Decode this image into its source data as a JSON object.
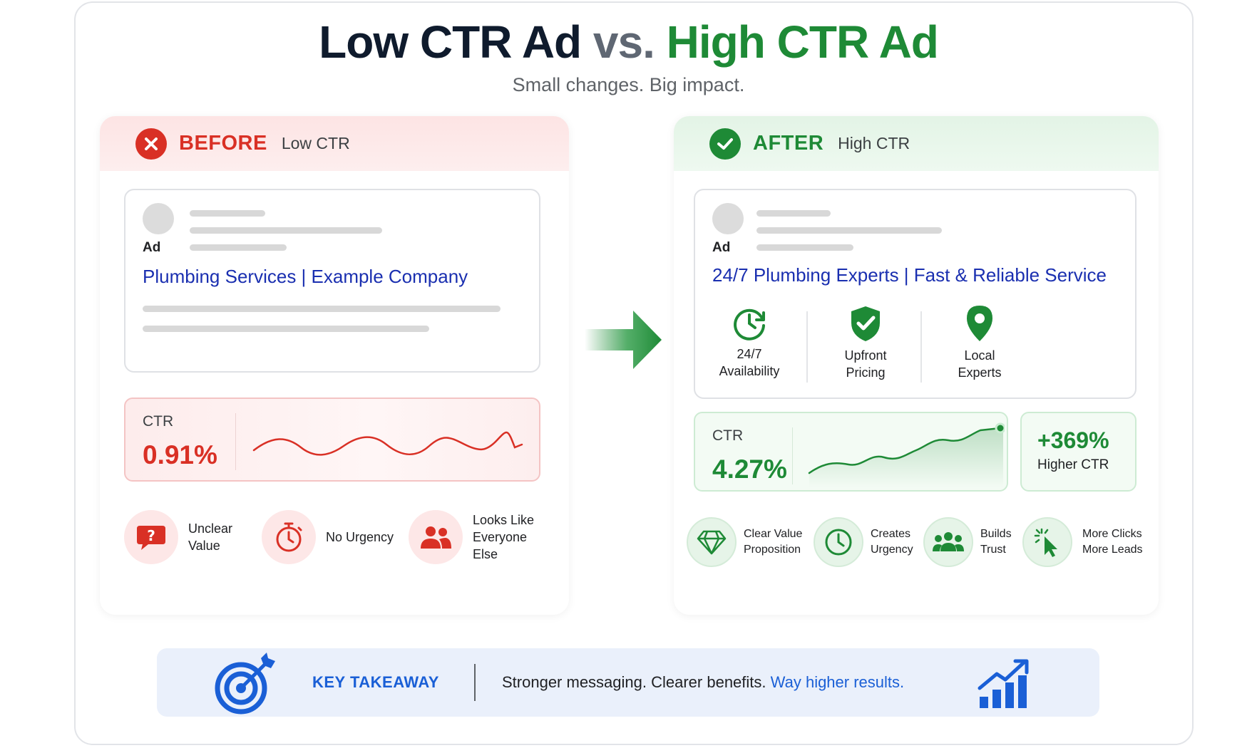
{
  "header": {
    "title_low": "Low CTR Ad",
    "title_vs": "vs.",
    "title_high": "High CTR Ad",
    "subtitle": "Small changes. Big impact."
  },
  "before": {
    "label": "BEFORE",
    "sublabel": "Low CTR",
    "ad_tag": "Ad",
    "headline": "Plumbing Services | Example Company",
    "ctr_label": "CTR",
    "ctr_value": "0.91%",
    "issues": [
      {
        "icon": "question-bubble-icon",
        "text_lines": [
          "Unclear",
          "Value"
        ]
      },
      {
        "icon": "stopwatch-icon",
        "text_lines": [
          "No Urgency"
        ]
      },
      {
        "icon": "people-icon",
        "text_lines": [
          "Looks Like",
          "Everyone",
          "Else"
        ]
      }
    ]
  },
  "after": {
    "label": "AFTER",
    "sublabel": "High CTR",
    "ad_tag": "Ad",
    "headline": "24/7 Plumbing Experts | Fast & Reliable Service",
    "features": [
      {
        "icon": "clock-icon",
        "text_lines": [
          "24/7",
          "Availability"
        ]
      },
      {
        "icon": "shield-check-icon",
        "text_lines": [
          "Upfront",
          "Pricing"
        ]
      },
      {
        "icon": "map-pin-icon",
        "text_lines": [
          "Local",
          "Experts"
        ]
      }
    ],
    "ctr_label": "CTR",
    "ctr_value": "4.27%",
    "uplift_value": "+369%",
    "uplift_label": "Higher CTR",
    "benefits": [
      {
        "icon": "diamond-icon",
        "text_lines": [
          "Clear Value",
          "Proposition"
        ]
      },
      {
        "icon": "clock-icon",
        "text_lines": [
          "Creates",
          "Urgency"
        ]
      },
      {
        "icon": "group-icon",
        "text_lines": [
          "Builds",
          "Trust"
        ]
      },
      {
        "icon": "cursor-click-icon",
        "text_lines": [
          "More Clicks",
          "More Leads"
        ]
      }
    ]
  },
  "takeaway": {
    "title": "KEY TAKEAWAY",
    "message": "Stronger messaging. Clearer benefits.",
    "highlight": "Way higher results."
  },
  "colors": {
    "red": "#d93025",
    "green": "#1e8a36",
    "blue": "#1a5fd6",
    "link_blue": "#1a2fb0"
  }
}
